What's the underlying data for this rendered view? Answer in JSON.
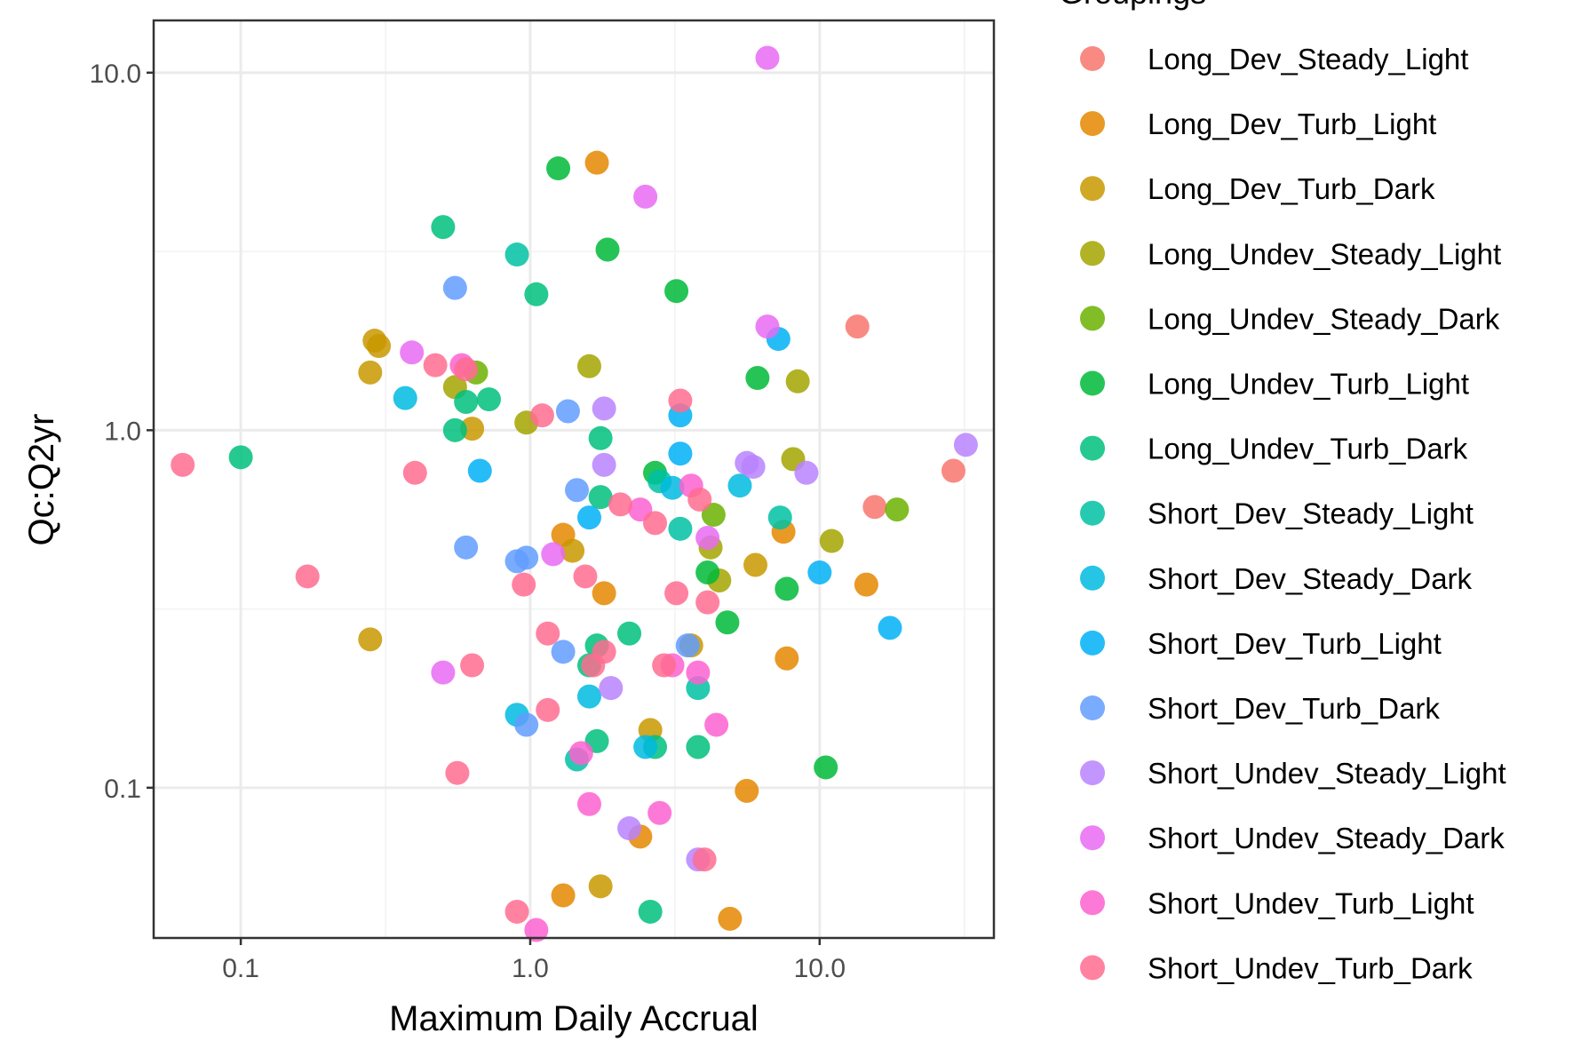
{
  "chart_data": {
    "type": "scatter",
    "xlabel": "Maximum Daily Accrual",
    "ylabel": "Qc:Q2yr",
    "x_scale": "log10",
    "y_scale": "log10",
    "xlim": [
      0.05,
      40
    ],
    "ylim": [
      0.038,
      14
    ],
    "x_ticks": [
      0.1,
      1.0,
      10.0
    ],
    "x_tick_labels": [
      "0.1",
      "1.0",
      "10.0"
    ],
    "y_ticks": [
      0.1,
      1.0,
      10.0
    ],
    "y_tick_labels": [
      "0.1",
      "1.0",
      "10.0"
    ],
    "grid": true,
    "legend_title": "Groupings",
    "legend_position": "right",
    "series": [
      {
        "name": "Long_Dev_Steady_Light",
        "color": "#F8766D",
        "points": [
          [
            13.5,
            1.95
          ],
          [
            15.5,
            0.61
          ],
          [
            29.0,
            0.77
          ]
        ]
      },
      {
        "name": "Long_Dev_Turb_Light",
        "color": "#E58700",
        "points": [
          [
            1.7,
            5.6
          ],
          [
            1.3,
            0.51
          ],
          [
            1.8,
            0.35
          ],
          [
            2.4,
            0.073
          ],
          [
            1.3,
            0.05
          ],
          [
            4.9,
            0.043
          ],
          [
            5.6,
            0.098
          ],
          [
            7.5,
            0.52
          ],
          [
            7.7,
            0.23
          ],
          [
            14.5,
            0.37
          ]
        ]
      },
      {
        "name": "Long_Dev_Turb_Dark",
        "color": "#C99800",
        "points": [
          [
            0.29,
            1.78
          ],
          [
            0.3,
            1.72
          ],
          [
            0.28,
            1.45
          ],
          [
            0.28,
            0.26
          ],
          [
            0.63,
            1.01
          ],
          [
            1.4,
            0.46
          ],
          [
            1.75,
            0.053
          ],
          [
            2.6,
            0.145
          ],
          [
            3.6,
            0.25
          ],
          [
            6.0,
            0.42
          ]
        ]
      },
      {
        "name": "Long_Undev_Steady_Light",
        "color": "#A3A500",
        "points": [
          [
            0.55,
            1.32
          ],
          [
            0.97,
            1.05
          ],
          [
            1.6,
            1.51
          ],
          [
            4.2,
            0.47
          ],
          [
            4.5,
            0.38
          ],
          [
            8.1,
            0.83
          ],
          [
            8.4,
            1.37
          ],
          [
            11.0,
            0.49
          ]
        ]
      },
      {
        "name": "Long_Undev_Steady_Dark",
        "color": "#6BB100",
        "points": [
          [
            0.65,
            1.45
          ],
          [
            4.3,
            0.58
          ],
          [
            18.5,
            0.6
          ]
        ]
      },
      {
        "name": "Long_Undev_Turb_Light",
        "color": "#00BA38",
        "points": [
          [
            1.25,
            5.4
          ],
          [
            1.85,
            3.2
          ],
          [
            3.2,
            2.45
          ],
          [
            6.1,
            1.4
          ],
          [
            2.7,
            0.76
          ],
          [
            4.1,
            0.4
          ],
          [
            4.8,
            0.29
          ],
          [
            7.7,
            0.36
          ],
          [
            10.5,
            0.114
          ]
        ]
      },
      {
        "name": "Long_Undev_Turb_Dark",
        "color": "#00BF7D",
        "points": [
          [
            0.1,
            0.84
          ],
          [
            0.5,
            3.7
          ],
          [
            1.05,
            2.4
          ],
          [
            0.55,
            1.0
          ],
          [
            0.6,
            1.2
          ],
          [
            0.72,
            1.22
          ],
          [
            1.75,
            0.95
          ],
          [
            1.75,
            0.65
          ],
          [
            2.2,
            0.27
          ],
          [
            1.7,
            0.25
          ],
          [
            1.6,
            0.22
          ],
          [
            1.7,
            0.135
          ],
          [
            2.7,
            0.13
          ],
          [
            3.8,
            0.13
          ],
          [
            2.6,
            0.045
          ]
        ]
      },
      {
        "name": "Short_Dev_Steady_Light",
        "color": "#00C1A3",
        "points": [
          [
            0.9,
            3.1
          ],
          [
            3.3,
            0.53
          ],
          [
            2.8,
            0.72
          ],
          [
            3.8,
            0.19
          ],
          [
            7.3,
            0.57
          ],
          [
            1.45,
            0.12
          ]
        ]
      },
      {
        "name": "Short_Dev_Steady_Dark",
        "color": "#00BAE0",
        "points": [
          [
            0.37,
            1.23
          ],
          [
            0.9,
            0.16
          ],
          [
            1.6,
            0.18
          ],
          [
            3.1,
            0.69
          ],
          [
            5.3,
            0.7
          ],
          [
            2.5,
            0.13
          ]
        ]
      },
      {
        "name": "Short_Dev_Turb_Light",
        "color": "#00B0F6",
        "points": [
          [
            0.67,
            0.77
          ],
          [
            1.6,
            0.57
          ],
          [
            3.3,
            1.1
          ],
          [
            3.3,
            0.86
          ],
          [
            7.2,
            1.8
          ],
          [
            10.0,
            0.4
          ],
          [
            17.5,
            0.28
          ]
        ]
      },
      {
        "name": "Short_Dev_Turb_Dark",
        "color": "#619CFF",
        "points": [
          [
            0.55,
            2.5
          ],
          [
            0.6,
            0.47
          ],
          [
            0.9,
            0.43
          ],
          [
            0.97,
            0.44
          ],
          [
            0.97,
            0.15
          ],
          [
            1.35,
            1.13
          ],
          [
            1.45,
            0.68
          ],
          [
            1.3,
            0.24
          ],
          [
            3.5,
            0.25
          ]
        ]
      },
      {
        "name": "Short_Undev_Steady_Light",
        "color": "#B983FF",
        "points": [
          [
            1.8,
            1.15
          ],
          [
            1.8,
            0.8
          ],
          [
            1.9,
            0.19
          ],
          [
            2.2,
            0.077
          ],
          [
            3.8,
            0.063
          ],
          [
            5.6,
            0.81
          ],
          [
            5.9,
            0.79
          ],
          [
            9.0,
            0.76
          ],
          [
            32.0,
            0.91
          ]
        ]
      },
      {
        "name": "Short_Undev_Steady_Dark",
        "color": "#E76BF3",
        "points": [
          [
            6.6,
            11.0
          ],
          [
            2.5,
            4.5
          ],
          [
            6.6,
            1.95
          ],
          [
            0.39,
            1.65
          ],
          [
            0.5,
            0.21
          ],
          [
            4.1,
            0.5
          ],
          [
            1.2,
            0.45
          ]
        ]
      },
      {
        "name": "Short_Undev_Turb_Light",
        "color": "#FD61D1",
        "points": [
          [
            0.58,
            1.52
          ],
          [
            2.4,
            0.6
          ],
          [
            3.6,
            0.7
          ],
          [
            3.1,
            0.22
          ],
          [
            3.8,
            0.21
          ],
          [
            1.6,
            0.09
          ],
          [
            2.8,
            0.085
          ],
          [
            4.4,
            0.15
          ],
          [
            1.05,
            0.04
          ],
          [
            1.5,
            0.125
          ]
        ]
      },
      {
        "name": "Short_Undev_Turb_Dark",
        "color": "#FF6C91",
        "points": [
          [
            0.063,
            0.8
          ],
          [
            0.17,
            0.39
          ],
          [
            0.4,
            0.76
          ],
          [
            0.47,
            1.52
          ],
          [
            0.6,
            1.48
          ],
          [
            1.1,
            1.1
          ],
          [
            0.95,
            0.37
          ],
          [
            1.15,
            0.27
          ],
          [
            1.15,
            0.165
          ],
          [
            0.56,
            0.11
          ],
          [
            0.9,
            0.045
          ],
          [
            0.63,
            0.22
          ],
          [
            1.55,
            0.39
          ],
          [
            1.8,
            0.24
          ],
          [
            1.65,
            0.22
          ],
          [
            2.05,
            0.62
          ],
          [
            2.7,
            0.55
          ],
          [
            3.2,
            0.35
          ],
          [
            3.3,
            1.21
          ],
          [
            3.85,
            0.64
          ],
          [
            4.1,
            0.33
          ],
          [
            2.9,
            0.22
          ],
          [
            4.0,
            0.063
          ]
        ]
      }
    ]
  }
}
